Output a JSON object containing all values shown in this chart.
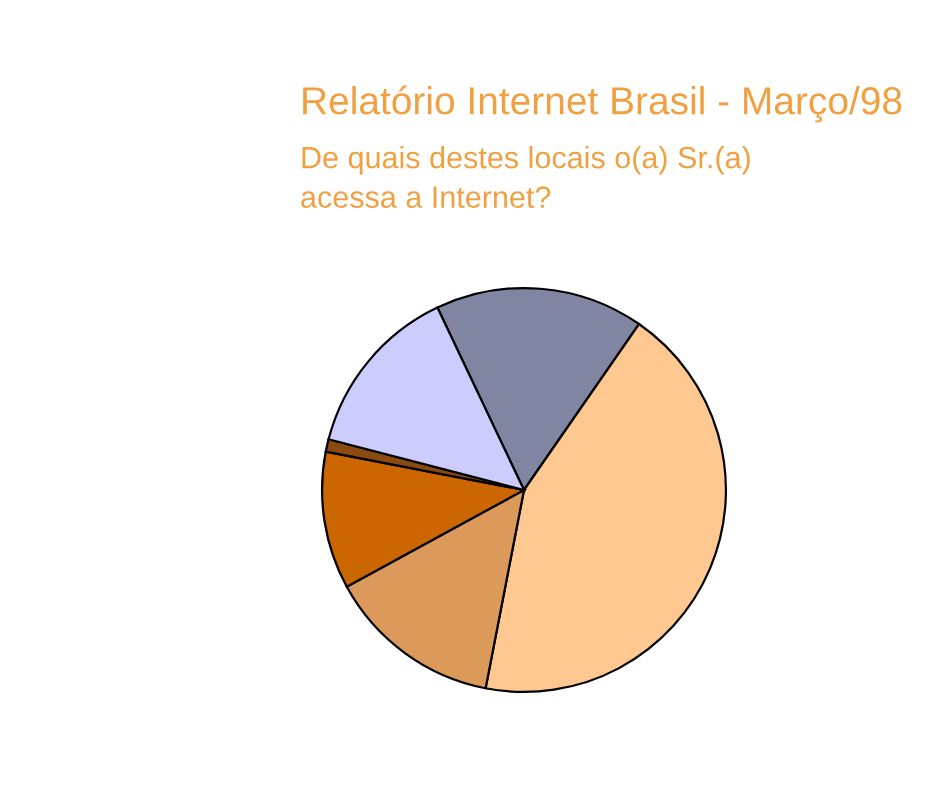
{
  "chart_data": {
    "type": "pie",
    "title": "Relatório Internet Brasil - Março/98",
    "subtitle": "De quais destes locais o(a) Sr.(a) acessa a Internet?",
    "categories": [
      null,
      null,
      null,
      null,
      null,
      null
    ],
    "values": [
      16.7,
      43.4,
      14.0,
      11.0,
      1.0,
      13.9
    ],
    "colors": [
      "#8086a2",
      "#ffc890",
      "#dc9a5a",
      "#cc6600",
      "#8a4a10",
      "#ccccff"
    ]
  }
}
